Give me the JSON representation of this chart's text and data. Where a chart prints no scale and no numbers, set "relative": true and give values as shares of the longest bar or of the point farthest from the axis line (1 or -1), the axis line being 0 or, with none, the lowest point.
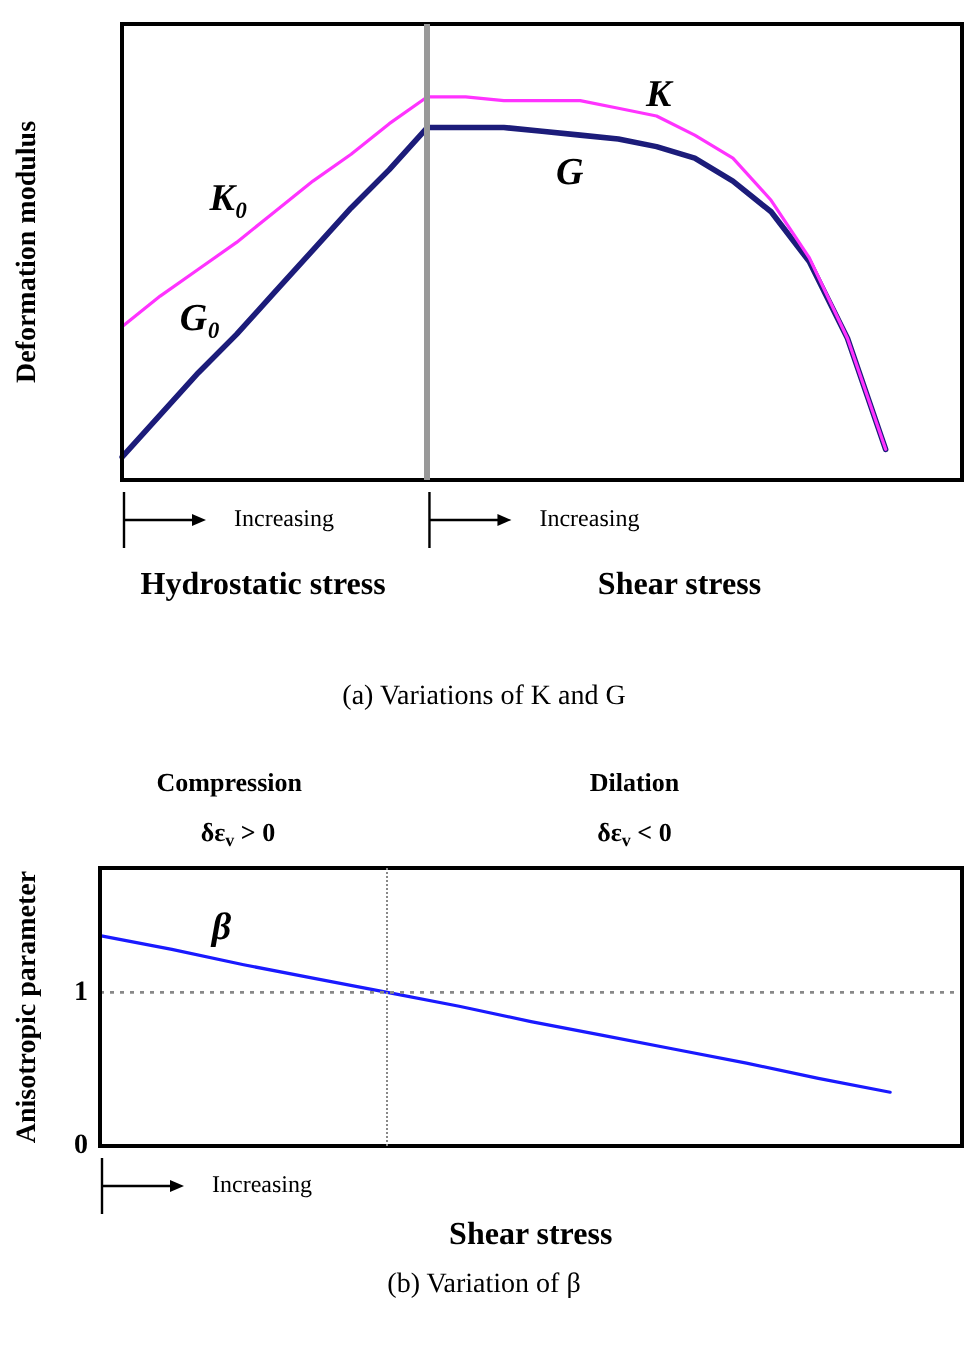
{
  "chart_data": [
    {
      "type": "line",
      "relative": true,
      "categories": [
        null,
        null,
        null,
        null,
        null,
        null,
        null,
        null,
        null,
        null,
        null,
        null,
        null,
        null,
        null,
        null,
        null,
        null,
        null,
        null,
        null,
        null,
        null
      ],
      "tick_labels": false,
      "ylabel": "Deformation modulus",
      "grid": false,
      "legend": false,
      "marker": "none",
      "series": [
        {
          "color": "#ff33ff",
          "values": [
            0.4,
            0.48,
            0.55,
            0.62,
            0.7,
            0.78,
            0.85,
            0.93,
            1,
            1,
            0.99,
            0.99,
            0.99,
            0.97,
            0.95,
            0.9,
            0.84,
            0.73,
            0.58,
            0.37,
            0.08,
            null,
            null
          ]
        },
        {
          "color": "#1c1c7a",
          "values": [
            0.06,
            0.17,
            0.28,
            0.38,
            0.49,
            0.6,
            0.71,
            0.81,
            0.92,
            0.92,
            0.92,
            0.91,
            0.9,
            0.89,
            0.87,
            0.84,
            0.78,
            0.7,
            0.57,
            0.37,
            0.08,
            null,
            null
          ]
        }
      ],
      "annotations": [
        "K₀",
        "G₀",
        "K",
        "G",
        "Increasing",
        "Increasing",
        "Hydrostatic stress",
        "Shear stress",
        "(a) Variations of K and G"
      ]
    },
    {
      "type": "line",
      "categories": [
        null,
        null,
        null,
        null,
        null,
        null,
        null,
        null,
        null,
        null,
        null,
        null,
        null
      ],
      "ylim": [
        0,
        1.81
      ],
      "yticks": [
        0,
        1
      ],
      "tick_labels": "y",
      "xlabel": "Shear stress",
      "ylabel": "Anisotropic parameter",
      "grid": false,
      "legend": false,
      "marker": "none",
      "series": [
        {
          "color": "#1a1aff",
          "values": [
            1.37,
            1.28,
            1.18,
            1.09,
            1,
            0.91,
            0.81,
            0.72,
            0.63,
            0.54,
            0.44,
            0.35,
            null
          ]
        }
      ],
      "ref_lines": [
        {
          "axis": "y",
          "value": 1,
          "color": "#888888",
          "line_style": "dotted"
        }
      ],
      "annotations": [
        "β",
        "Compression",
        "δε$_{v}$ > 0",
        "Dilation",
        "δε$_{v}$ < 0",
        "Increasing",
        "(b) Variation of β"
      ]
    }
  ]
}
